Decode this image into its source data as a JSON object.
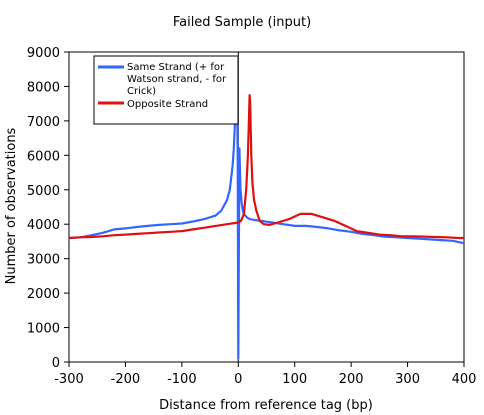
{
  "chart_data": {
    "type": "line",
    "title": "Failed Sample (input)",
    "xlabel": "Distance from reference tag (bp)",
    "ylabel": "Number of observations",
    "xlim": [
      -300,
      400
    ],
    "ylim": [
      0,
      9000
    ],
    "xticks": [
      -300,
      -200,
      -100,
      0,
      100,
      200,
      300,
      400
    ],
    "yticks": [
      0,
      1000,
      2000,
      3000,
      4000,
      5000,
      6000,
      7000,
      8000,
      9000
    ],
    "grid": false,
    "legend_position": "top-left",
    "series": [
      {
        "name": "Same Strand (+ for Watson strand, - for Crick)",
        "color": "#3366ff",
        "x": [
          -300,
          -280,
          -260,
          -240,
          -220,
          -200,
          -180,
          -160,
          -140,
          -120,
          -100,
          -80,
          -60,
          -40,
          -30,
          -20,
          -15,
          -10,
          -8,
          -6,
          -4,
          -2,
          -1,
          0,
          1,
          2,
          4,
          6,
          8,
          10,
          15,
          20,
          30,
          40,
          60,
          80,
          100,
          120,
          140,
          160,
          180,
          200,
          220,
          240,
          260,
          280,
          300,
          320,
          340,
          360,
          380,
          400
        ],
        "y": [
          3600,
          3620,
          3680,
          3750,
          3850,
          3880,
          3920,
          3950,
          3980,
          4000,
          4020,
          4080,
          4150,
          4250,
          4400,
          4700,
          5000,
          5700,
          6200,
          6900,
          7300,
          7450,
          6000,
          100,
          3000,
          6200,
          5000,
          4600,
          4400,
          4300,
          4200,
          4150,
          4120,
          4100,
          4050,
          4000,
          3950,
          3950,
          3920,
          3880,
          3820,
          3780,
          3720,
          3680,
          3640,
          3620,
          3600,
          3580,
          3560,
          3540,
          3520,
          3450
        ]
      },
      {
        "name": "Opposite Strand",
        "color": "#dd1111",
        "x": [
          -300,
          -280,
          -260,
          -240,
          -220,
          -200,
          -180,
          -160,
          -140,
          -120,
          -100,
          -80,
          -60,
          -40,
          -20,
          0,
          5,
          10,
          14,
          17,
          19,
          20,
          21,
          22,
          23,
          25,
          28,
          32,
          38,
          45,
          55,
          70,
          90,
          110,
          130,
          150,
          170,
          190,
          210,
          230,
          250,
          270,
          290,
          310,
          330,
          350,
          370,
          390,
          400
        ],
        "y": [
          3600,
          3620,
          3630,
          3650,
          3680,
          3700,
          3720,
          3740,
          3760,
          3780,
          3800,
          3850,
          3900,
          3950,
          4000,
          4050,
          4100,
          4300,
          5000,
          6000,
          7100,
          7750,
          7600,
          6800,
          6000,
          5200,
          4700,
          4400,
          4100,
          4000,
          3980,
          4050,
          4150,
          4300,
          4300,
          4200,
          4100,
          3950,
          3800,
          3750,
          3700,
          3680,
          3650,
          3650,
          3640,
          3630,
          3620,
          3600,
          3600
        ]
      }
    ]
  }
}
